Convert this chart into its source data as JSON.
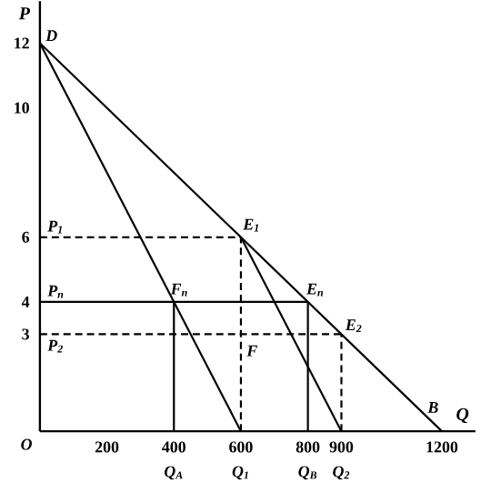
{
  "chart_data": {
    "type": "line",
    "xlabel": "Q",
    "ylabel": "P",
    "xlim": [
      0,
      1300
    ],
    "ylim": [
      0,
      13.3
    ],
    "xticks": [
      200,
      400,
      600,
      800,
      900,
      1200
    ],
    "yticks": [
      3,
      4,
      6,
      10,
      12
    ],
    "marker": "none",
    "grid": false,
    "series": [
      {
        "color": "#000000",
        "line_style": "solid",
        "x": [
          0,
          1200
        ],
        "values": [
          12,
          0
        ]
      },
      {
        "color": "#000000",
        "line_style": "solid",
        "x": [
          0,
          600
        ],
        "values": [
          12,
          0
        ]
      },
      {
        "color": "#000000",
        "line_style": "solid",
        "x": [
          600,
          900
        ],
        "values": [
          6,
          0
        ]
      },
      {
        "color": "#000000",
        "line_style": "solid",
        "x": [
          0,
          800
        ],
        "values": [
          4,
          4
        ]
      },
      {
        "color": "#000000",
        "line_style": "solid",
        "x": [
          400,
          400
        ],
        "values": [
          0,
          4
        ]
      },
      {
        "color": "#000000",
        "line_style": "solid",
        "x": [
          800,
          800
        ],
        "values": [
          0,
          4
        ]
      },
      {
        "color": "#000000",
        "line_style": "dashed",
        "x": [
          0,
          600
        ],
        "values": [
          6,
          6
        ]
      },
      {
        "color": "#000000",
        "line_style": "dashed",
        "x": [
          600,
          600
        ],
        "values": [
          0,
          6
        ]
      },
      {
        "color": "#000000",
        "line_style": "dashed",
        "x": [
          0,
          900
        ],
        "values": [
          3,
          3
        ]
      },
      {
        "color": "#000000",
        "line_style": "dashed",
        "x": [
          900,
          900
        ],
        "values": [
          0,
          3
        ]
      }
    ],
    "annotations": [
      {
        "text": "D",
        "x": 0,
        "y": 12
      },
      {
        "text": "E$_{1}$",
        "x": 600,
        "y": 6
      },
      {
        "text": "E$_{n}$",
        "x": 800,
        "y": 4
      },
      {
        "text": "E$_{2}$",
        "x": 900,
        "y": 3
      },
      {
        "text": "F$_{n}$",
        "x": 400,
        "y": 4
      },
      {
        "text": "F",
        "x": 600,
        "y": 3
      },
      {
        "text": "B",
        "x": 1200,
        "y": 0
      },
      {
        "text": "P$_{1}$",
        "x": 0,
        "y": 6
      },
      {
        "text": "P$_{n}$",
        "x": 0,
        "y": 4
      },
      {
        "text": "P$_{2}$",
        "x": 0,
        "y": 3
      },
      {
        "text": "Q$_{A}$",
        "x": 400,
        "y": 0
      },
      {
        "text": "Q$_{1}$",
        "x": 600,
        "y": 0
      },
      {
        "text": "Q$_{B}$",
        "x": 800,
        "y": 0
      },
      {
        "text": "Q$_{2}$",
        "x": 900,
        "y": 0
      },
      "O"
    ]
  }
}
